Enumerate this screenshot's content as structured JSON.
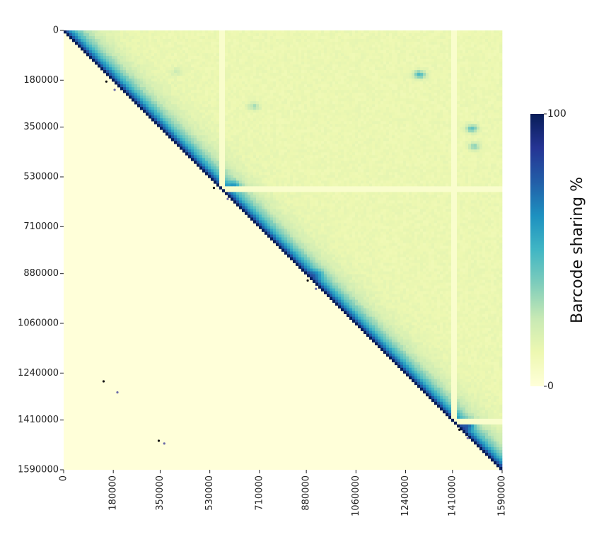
{
  "chart_data": {
    "type": "heatmap",
    "title": "",
    "xlabel": "",
    "ylabel": "",
    "x_tick_labels": [
      "0",
      "180000",
      "350000",
      "530000",
      "710000",
      "880000",
      "1060000",
      "1240000",
      "1410000",
      "1590000"
    ],
    "y_tick_labels": [
      "0",
      "180000",
      "350000",
      "530000",
      "710000",
      "880000",
      "1060000",
      "1240000",
      "1410000",
      "1590000"
    ],
    "x_range": [
      0,
      1590000
    ],
    "y_range": [
      0,
      1590000
    ],
    "y_axis_direction": "top-to-bottom",
    "colorbar": {
      "label": "Barcode sharing %",
      "min": 0,
      "max": 100,
      "min_label": "0",
      "max_label": "100",
      "colormap": [
        "#ffffd9",
        "#edf8b1",
        "#c7e9b4",
        "#7fcdbb",
        "#41b6c4",
        "#1d91c0",
        "#225ea8",
        "#253494",
        "#081d58"
      ]
    },
    "description": {
      "lower_triangle_value": 0,
      "upper_background_value": 13,
      "diagonal_value": 100,
      "diagonal_decay_width": 90000
    },
    "hotspots": [
      {
        "x": 1290000,
        "y": 160000,
        "value": 48
      },
      {
        "x": 1480000,
        "y": 355000,
        "value": 45
      },
      {
        "x": 1490000,
        "y": 420000,
        "value": 35
      },
      {
        "x": 620000,
        "y": 560000,
        "value": 35
      },
      {
        "x": 920000,
        "y": 880000,
        "value": 30
      },
      {
        "x": 1470000,
        "y": 1430000,
        "value": 35
      },
      {
        "x": 410000,
        "y": 150000,
        "value": 22
      },
      {
        "x": 690000,
        "y": 275000,
        "value": 30
      }
    ],
    "light_streaks": [
      {
        "orientation": "vertical",
        "position": 575000
      },
      {
        "orientation": "vertical",
        "position": 1415000
      },
      {
        "orientation": "horizontal",
        "position": 575000
      },
      {
        "orientation": "horizontal",
        "position": 1415000
      }
    ],
    "scatter_points": [
      {
        "x": 145000,
        "y": 1270000
      },
      {
        "x": 195000,
        "y": 1310000
      },
      {
        "x": 345000,
        "y": 1485000
      },
      {
        "x": 365000,
        "y": 1495000
      },
      {
        "x": 155000,
        "y": 185000
      },
      {
        "x": 185000,
        "y": 215000
      },
      {
        "x": 545000,
        "y": 570000
      },
      {
        "x": 595000,
        "y": 610000
      },
      {
        "x": 885000,
        "y": 905000
      },
      {
        "x": 915000,
        "y": 935000
      },
      {
        "x": 1435000,
        "y": 1445000
      },
      {
        "x": 1465000,
        "y": 1475000
      }
    ]
  }
}
